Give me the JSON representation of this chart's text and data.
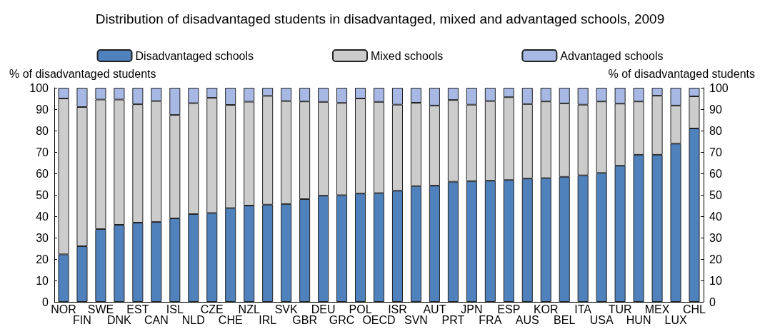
{
  "chart_data": {
    "type": "bar",
    "stacked": true,
    "title": "Distribution of disadvantaged students in disadvantaged, mixed and advantaged schools, 2009",
    "ylabel": "% of disadvantaged students",
    "y2label": "% of disadvantaged students",
    "categories": [
      "NOR",
      "FIN",
      "SWE",
      "DNK",
      "EST",
      "CAN",
      "ISL",
      "NLD",
      "CZE",
      "CHE",
      "NZL",
      "IRL",
      "SVK",
      "GBR",
      "DEU",
      "GRC",
      "POL",
      "OECD",
      "ISR",
      "SVN",
      "AUT",
      "PRT",
      "JPN",
      "FRA",
      "ESP",
      "AUS",
      "KOR",
      "BEL",
      "ITA",
      "USA",
      "TUR",
      "HUN",
      "MEX",
      "LUX",
      "CHL"
    ],
    "series": [
      {
        "name": "Disadvantaged schools",
        "color": "#4f81bd",
        "values": [
          22.2,
          26,
          34,
          36,
          37,
          37.3,
          39,
          41,
          41.5,
          43.8,
          45,
          45.4,
          45.7,
          48,
          49.6,
          49.8,
          50.6,
          50.8,
          51.9,
          54.1,
          54.3,
          56.1,
          56.4,
          56.6,
          56.9,
          57.6,
          57.8,
          58.4,
          59.1,
          60.2,
          63.6,
          68.7,
          68.7,
          73.9,
          81
        ]
      },
      {
        "name": "Mixed schools",
        "color": "#cccccc",
        "values": [
          72.8,
          65,
          60.5,
          58.5,
          55.3,
          56.5,
          48.3,
          51.8,
          53.8,
          48.2,
          48.5,
          50.8,
          48.1,
          45.6,
          43.8,
          43.1,
          44.4,
          42.6,
          40.2,
          38.9,
          37.4,
          38.2,
          35.7,
          37.2,
          38.7,
          34.8,
          35.8,
          34.3,
          33,
          33.4,
          29,
          24.9,
          27.6,
          17.8,
          15
        ]
      },
      {
        "name": "Advantaged schools",
        "color": "#a6b8e3",
        "values": [
          5,
          9,
          5.5,
          5.5,
          7.7,
          6.2,
          12.7,
          7.2,
          4.7,
          8,
          6.5,
          3.8,
          6.2,
          6.4,
          6.6,
          7.1,
          5,
          6.6,
          7.9,
          7,
          8.3,
          5.7,
          7.9,
          6.2,
          4.4,
          7.6,
          6.4,
          7.3,
          7.9,
          6.4,
          7.4,
          6.4,
          3.7,
          8.3,
          4
        ]
      }
    ],
    "ylim": [
      0,
      100
    ],
    "yticks": [
      0,
      10,
      20,
      30,
      40,
      50,
      60,
      70,
      80,
      90,
      100
    ],
    "y2lim": [
      0,
      100
    ],
    "y2ticks": [
      0,
      10,
      20,
      30,
      40,
      50,
      60,
      70,
      80,
      90,
      100
    ],
    "legend": "top",
    "grid": false
  }
}
